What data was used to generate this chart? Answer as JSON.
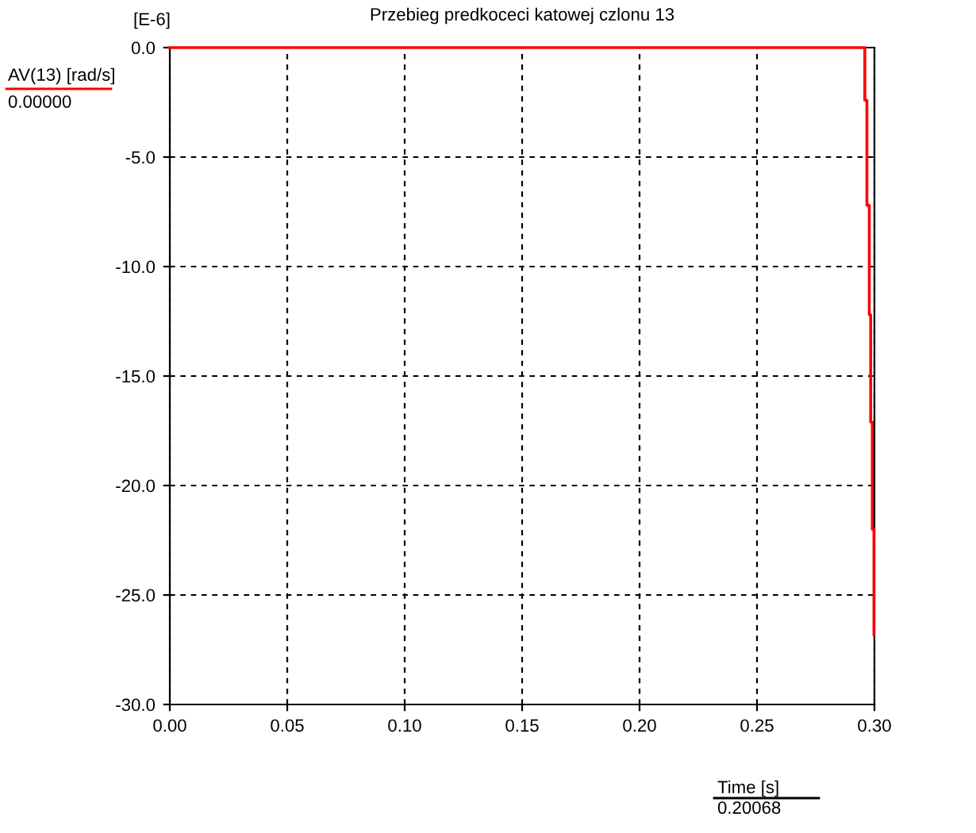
{
  "chart_data": {
    "type": "line",
    "title": "Przebieg predkoceci katowej czlonu 13",
    "xlabel": "Time [s]",
    "annotations": [
      "[E-6]",
      "0.00000",
      "0.20068"
    ],
    "series": [
      {
        "name": "AV(13) [rad/s]",
        "color": "#ff0000",
        "x": [
          0.0,
          0.2959,
          0.2959,
          0.2968,
          0.2968,
          0.2978,
          0.2978,
          0.2984,
          0.2984,
          0.2991,
          0.2991,
          0.2998,
          0.2998
        ],
        "values": [
          0.0,
          0.0,
          -2.4,
          -2.4,
          -7.2,
          -7.2,
          -12.2,
          -12.2,
          -17.1,
          -17.1,
          -22.0,
          -22.0,
          -26.8
        ]
      }
    ],
    "xlim": [
      0.0,
      0.3
    ],
    "ylim": [
      -30.0,
      0.0
    ],
    "xticks": [
      {
        "value": 0.0,
        "label": "0.00"
      },
      0.05,
      {
        "value": 0.1,
        "label": "0.10"
      },
      0.15,
      {
        "value": 0.2,
        "label": "0.20"
      },
      0.25,
      {
        "value": 0.3,
        "label": "0.30"
      }
    ],
    "yticks": [
      {
        "value": 0.0,
        "label": "0.0"
      },
      {
        "value": -5,
        "label": "-5.0"
      },
      {
        "value": -10,
        "label": "-10.0"
      },
      {
        "value": -15,
        "label": "-15.0"
      },
      {
        "value": -20,
        "label": "-20.0"
      },
      {
        "value": -25,
        "label": "-25.0"
      },
      {
        "value": -30,
        "label": "-30.0"
      }
    ],
    "grid": true,
    "line_style": "solid",
    "marker": "none"
  }
}
